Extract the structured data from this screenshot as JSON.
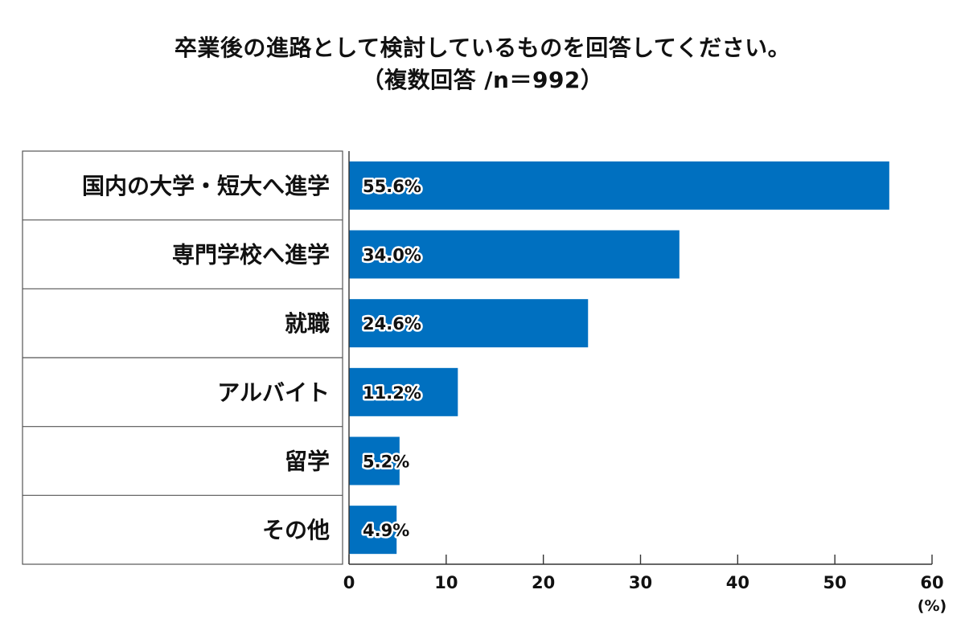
{
  "chart_data": {
    "type": "bar",
    "orientation": "horizontal",
    "title": "卒業後の進路として検討しているものを回答してください。",
    "subtitle": "（複数回答 /n＝992）",
    "categories": [
      "国内の大学・短大へ進学",
      "専門学校へ進学",
      "就職",
      "アルバイト",
      "留学",
      "その他"
    ],
    "values": [
      55.6,
      34.0,
      24.6,
      11.2,
      5.2,
      4.9
    ],
    "value_labels": [
      "55.6%",
      "34.0%",
      "24.6%",
      "11.2%",
      "5.2%",
      "4.9%"
    ],
    "xlim": [
      0,
      60
    ],
    "xticks": [
      0,
      10,
      20,
      30,
      40,
      50,
      60
    ],
    "xunit": "(%)",
    "bar_color": "#0070c0",
    "grid": false,
    "legend": "none"
  }
}
